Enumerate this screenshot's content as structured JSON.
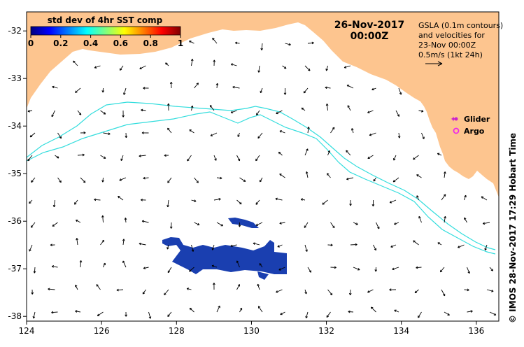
{
  "map": {
    "colorbar": {
      "title": "std dev of 4hr SST comp",
      "ticks": [
        "0",
        "0.2",
        "0.4",
        "0.6",
        "0.8",
        "1"
      ],
      "colors": [
        "#00007f",
        "#0000ff",
        "#007fff",
        "#00ffff",
        "#7fff7f",
        "#ffff00",
        "#ff7f00",
        "#ff0000",
        "#7f0000"
      ]
    },
    "date_line1": "26-Nov-2017",
    "date_line2": "00:00Z",
    "info": [
      "GSLA (0.1m contours)",
      "and velocities for",
      "23-Nov 00:00Z",
      "0.5m/s (1kt 24h)"
    ],
    "legend": [
      {
        "label": "Glider",
        "color": "#cc22cc"
      },
      {
        "label": "Argo",
        "color": "#ee22ee"
      }
    ],
    "x_ticks": [
      "124",
      "126",
      "128",
      "130",
      "132",
      "134",
      "136"
    ],
    "y_ticks": [
      "-32",
      "-33",
      "-34",
      "-35",
      "-36",
      "-37",
      "-38"
    ],
    "x_range": [
      124,
      136.6
    ],
    "y_range": [
      -38.1,
      -31.6
    ],
    "credit": "© IMOS 28-Nov-2017 17:29 Hobart Time",
    "colors": {
      "land": "#fdc58f",
      "contour": "#33dddd",
      "sst_patch": "#1a3fb0",
      "arrow": "#000000"
    }
  }
}
